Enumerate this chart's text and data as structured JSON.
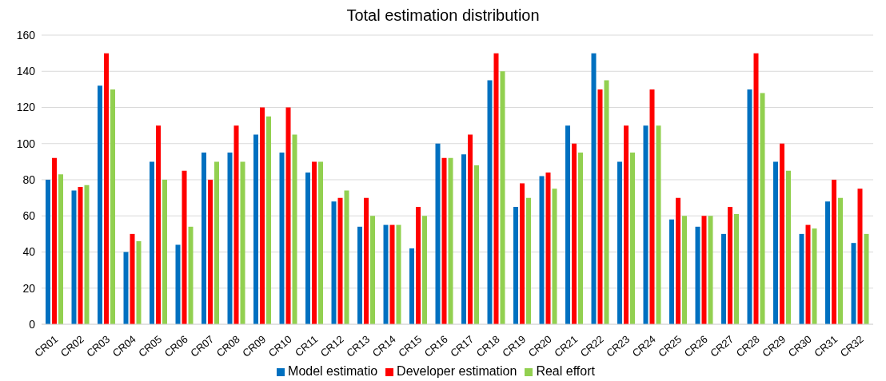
{
  "chart_data": {
    "type": "bar",
    "title": "Total estimation distribution",
    "categories": [
      "CR01",
      "CR02",
      "CR03",
      "CR04",
      "CR05",
      "CR06",
      "CR07",
      "CR08",
      "CR09",
      "CR10",
      "CR11",
      "CR12",
      "CR13",
      "CR14",
      "CR15",
      "CR16",
      "CR17",
      "CR18",
      "CR19",
      "CR20",
      "CR21",
      "CR22",
      "CR23",
      "CR24",
      "CR25",
      "CR26",
      "CR27",
      "CR28",
      "CR29",
      "CR30",
      "CR31",
      "CR32"
    ],
    "series": [
      {
        "name": "Model estimatio",
        "color": "#0070c0",
        "values": [
          80,
          74,
          132,
          40,
          90,
          44,
          95,
          95,
          105,
          95,
          84,
          68,
          54,
          55,
          42,
          100,
          94,
          135,
          65,
          82,
          110,
          150,
          90,
          110,
          58,
          54,
          50,
          130,
          90,
          50,
          68,
          45
        ]
      },
      {
        "name": "Developer estimation",
        "color": "#ff0000",
        "values": [
          92,
          76,
          150,
          50,
          110,
          85,
          80,
          110,
          120,
          120,
          90,
          70,
          70,
          55,
          65,
          92,
          105,
          150,
          78,
          84,
          100,
          130,
          110,
          130,
          70,
          60,
          65,
          150,
          100,
          55,
          80,
          75
        ]
      },
      {
        "name": "Real effort",
        "color": "#92d050",
        "values": [
          83,
          77,
          130,
          46,
          80,
          54,
          90,
          90,
          115,
          105,
          90,
          74,
          60,
          55,
          60,
          92,
          88,
          140,
          70,
          75,
          95,
          135,
          95,
          110,
          60,
          60,
          61,
          128,
          85,
          53,
          70,
          50
        ]
      }
    ],
    "ylim": [
      0,
      160
    ],
    "yticks": [
      0,
      20,
      40,
      60,
      80,
      100,
      120,
      140,
      160
    ],
    "grid": "y",
    "legend": "bottom"
  }
}
